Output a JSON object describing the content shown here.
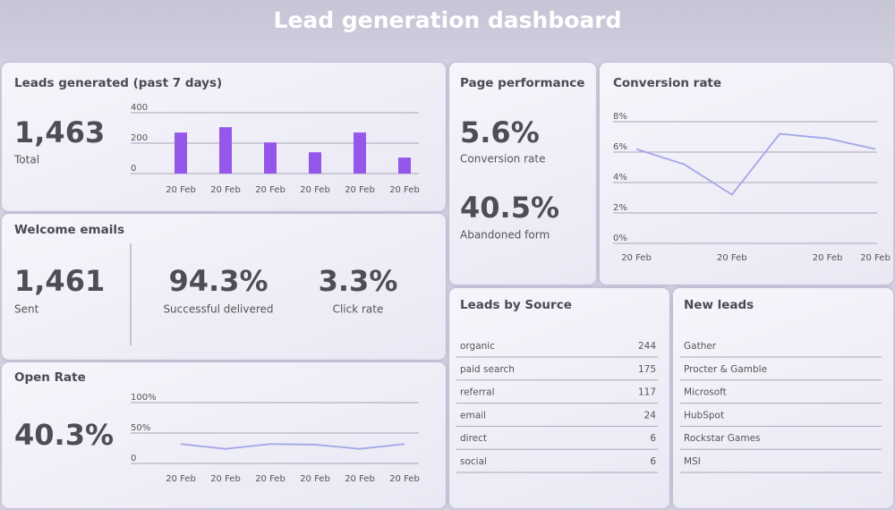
{
  "header": {
    "title": "Lead generation dashboard"
  },
  "leads_generated": {
    "title": "Leads generated (past 7 days)",
    "value": "1,463",
    "label": "Total"
  },
  "welcome_emails": {
    "title": "Welcome emails",
    "stats": [
      {
        "value": "1,461",
        "label": "Sent"
      },
      {
        "value": "94.3%",
        "label": "Successful delivered"
      },
      {
        "value": "3.3%",
        "label": "Click rate"
      }
    ]
  },
  "open_rate": {
    "title": "Open Rate",
    "value": "40.3%"
  },
  "page_performance": {
    "title": "Page performance",
    "stats": [
      {
        "value": "5.6%",
        "label": "Conversion rate"
      },
      {
        "value": "40.5%",
        "label": "Abandoned form"
      }
    ]
  },
  "conversion_rate": {
    "title": "Conversion rate"
  },
  "leads_by_source": {
    "title": "Leads by Source",
    "rows": [
      [
        "organic",
        244
      ],
      [
        "paid search",
        175
      ],
      [
        "referral",
        117
      ],
      [
        "email",
        24
      ],
      [
        "direct",
        6
      ],
      [
        "social",
        6
      ]
    ]
  },
  "new_leads": {
    "title": "New leads",
    "rows": [
      "Gather",
      "Procter & Gamble",
      "Microsoft",
      "HubSpot",
      "Rockstar Games",
      "MSI"
    ]
  },
  "chart_data": [
    {
      "type": "bar",
      "categories": [
        "20 Feb",
        "20 Feb",
        "20 Feb",
        "20 Feb",
        "20 Feb",
        "20 Feb"
      ],
      "values": [
        270,
        305,
        205,
        140,
        270,
        105
      ],
      "color": "#9457ea",
      "ylim": [
        0,
        400
      ],
      "yticks": [
        0,
        200,
        400
      ],
      "grid": true
    },
    {
      "type": "line",
      "categories": [
        "20 Feb",
        null,
        "20 Feb",
        null,
        "20 Feb",
        "20 Feb"
      ],
      "values": [
        6.2,
        5.2,
        3.2,
        7.2,
        6.9,
        6.2
      ],
      "color": "#a3a6e6",
      "ylim": [
        0,
        8
      ],
      "yticks": [
        {
          "value": 0,
          "label": "0%"
        },
        {
          "value": 2,
          "label": "2%"
        },
        {
          "value": 4,
          "label": "4%"
        },
        {
          "value": 6,
          "label": "6%"
        },
        {
          "value": 8,
          "label": "8%"
        }
      ],
      "grid": true
    },
    {
      "type": "line",
      "categories": [
        "20 Feb",
        "20 Feb",
        "20 Feb",
        "20 Feb",
        "20 Feb",
        "20 Feb"
      ],
      "values": [
        32,
        24,
        32,
        31,
        24,
        32
      ],
      "color": "#a3a6e6",
      "ylim": [
        0,
        100
      ],
      "yticks": [
        {
          "value": 0,
          "label": "0"
        },
        {
          "value": 50,
          "label": "50%"
        },
        {
          "value": 100,
          "label": "100%"
        }
      ],
      "grid": true
    }
  ]
}
